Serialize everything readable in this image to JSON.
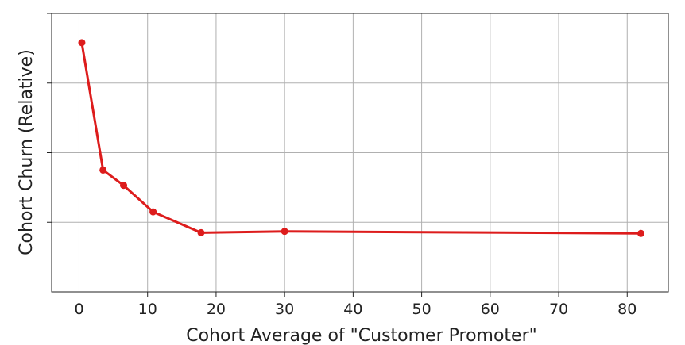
{
  "chart_data": {
    "type": "line",
    "title": "",
    "xlabel": "Cohort Average of  \"Customer Promoter\"",
    "ylabel": "Cohort Churn (Relative)",
    "xlim": [
      -4,
      86
    ],
    "ylim": [
      0,
      4
    ],
    "x_ticks": [
      0,
      10,
      20,
      30,
      40,
      50,
      60,
      70,
      80
    ],
    "x_tick_labels": [
      "0",
      "10",
      "20",
      "30",
      "40",
      "50",
      "60",
      "70",
      "80"
    ],
    "y_ticks": [
      1,
      2,
      3,
      4
    ],
    "y_tick_labels_shown": false,
    "grid": true,
    "legend": "none",
    "series": [
      {
        "color": "#dd1c1c",
        "marker": "circle",
        "x": [
          0.4,
          3.5,
          6.5,
          10.8,
          17.8,
          30,
          82
        ],
        "y": [
          3.58,
          1.75,
          1.53,
          1.15,
          0.85,
          0.87,
          0.84
        ]
      }
    ]
  }
}
